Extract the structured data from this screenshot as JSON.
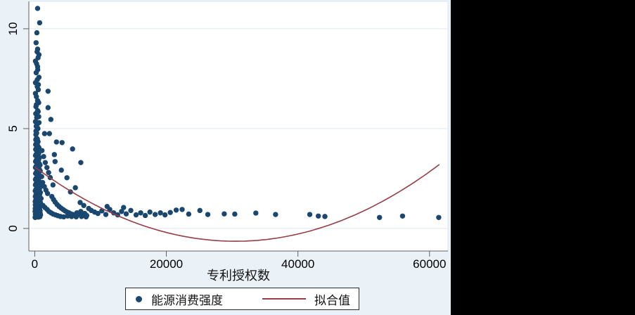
{
  "figure": {
    "background_color": "#eaf1f7",
    "outside_fill_color": "#000000",
    "plot_background": "#ffffff",
    "grid_color": "#dde9f0",
    "axis_color": "#606060",
    "tick_label_color": "#000000"
  },
  "chart_data": {
    "type": "scatter",
    "title": "",
    "xlabel": "专利授权数",
    "ylabel": "",
    "grid": "horizontal-only",
    "legend_position": "bottom-outside",
    "x_axis": {
      "ticks": [
        0,
        20000,
        40000,
        60000
      ],
      "tick_labels": [
        "0",
        "20000",
        "40000",
        "60000"
      ],
      "range": [
        -900,
        62800
      ]
    },
    "y_axis": {
      "ticks": [
        0,
        5,
        10
      ],
      "tick_labels": [
        "0",
        "5",
        "10"
      ],
      "range": [
        -1.13,
        11.37
      ]
    },
    "legend": [
      {
        "marker": "dot",
        "label": "能源消费强度",
        "color": "#1a476f"
      },
      {
        "marker": "line",
        "label": "拟合值",
        "color": "#973d44"
      }
    ],
    "series": [
      {
        "name": "能源消费强度",
        "type": "scatter",
        "color": "#1a476f",
        "marker_radius": 3.7,
        "points": [
          [
            60,
            0.55
          ],
          [
            120,
            0.62
          ],
          [
            200,
            0.58
          ],
          [
            310,
            0.66
          ],
          [
            420,
            0.6
          ],
          [
            540,
            0.57
          ],
          [
            660,
            0.63
          ],
          [
            780,
            0.59
          ],
          [
            880,
            0.68
          ],
          [
            95,
            0.72
          ],
          [
            175,
            0.78
          ],
          [
            260,
            0.74
          ],
          [
            350,
            0.8
          ],
          [
            470,
            0.76
          ],
          [
            590,
            0.82
          ],
          [
            700,
            0.71
          ],
          [
            820,
            0.77
          ],
          [
            55,
            0.85
          ],
          [
            140,
            0.9
          ],
          [
            230,
            0.88
          ],
          [
            330,
            0.95
          ],
          [
            450,
            0.92
          ],
          [
            570,
            0.86
          ],
          [
            690,
            0.93
          ],
          [
            810,
            0.89
          ],
          [
            70,
            1.0
          ],
          [
            160,
            1.05
          ],
          [
            250,
            0.98
          ],
          [
            360,
            1.1
          ],
          [
            480,
            1.02
          ],
          [
            600,
            1.08
          ],
          [
            720,
            1.0
          ],
          [
            840,
            1.12
          ],
          [
            85,
            1.18
          ],
          [
            190,
            1.22
          ],
          [
            280,
            1.15
          ],
          [
            390,
            1.25
          ],
          [
            510,
            1.2
          ],
          [
            630,
            1.28
          ],
          [
            750,
            1.16
          ],
          [
            860,
            1.3
          ],
          [
            65,
            1.35
          ],
          [
            150,
            1.42
          ],
          [
            240,
            1.38
          ],
          [
            340,
            1.48
          ],
          [
            460,
            1.4
          ],
          [
            580,
            1.5
          ],
          [
            700,
            1.44
          ],
          [
            800,
            1.55
          ],
          [
            90,
            1.6
          ],
          [
            180,
            1.68
          ],
          [
            270,
            1.62
          ],
          [
            380,
            1.72
          ],
          [
            500,
            1.65
          ],
          [
            620,
            1.75
          ],
          [
            740,
            1.7
          ],
          [
            855,
            1.8
          ],
          [
            75,
            1.88
          ],
          [
            165,
            1.95
          ],
          [
            255,
            1.9
          ],
          [
            365,
            2.0
          ],
          [
            485,
            1.92
          ],
          [
            605,
            2.05
          ],
          [
            725,
            1.98
          ],
          [
            845,
            2.1
          ],
          [
            100,
            2.18
          ],
          [
            210,
            2.25
          ],
          [
            320,
            2.2
          ],
          [
            430,
            2.3
          ],
          [
            550,
            2.24
          ],
          [
            670,
            2.35
          ],
          [
            790,
            2.28
          ],
          [
            110,
            2.45
          ],
          [
            225,
            2.52
          ],
          [
            345,
            2.48
          ],
          [
            465,
            2.6
          ],
          [
            585,
            2.55
          ],
          [
            705,
            2.65
          ],
          [
            825,
            2.58
          ],
          [
            130,
            2.75
          ],
          [
            245,
            2.82
          ],
          [
            355,
            2.78
          ],
          [
            475,
            2.9
          ],
          [
            595,
            2.85
          ],
          [
            715,
            2.95
          ],
          [
            835,
            2.88
          ],
          [
            105,
            3.05
          ],
          [
            220,
            3.12
          ],
          [
            335,
            3.08
          ],
          [
            445,
            3.2
          ],
          [
            565,
            3.15
          ],
          [
            685,
            3.25
          ],
          [
            805,
            3.18
          ],
          [
            125,
            3.35
          ],
          [
            235,
            3.42
          ],
          [
            352,
            3.38
          ],
          [
            472,
            3.5
          ],
          [
            592,
            3.45
          ],
          [
            712,
            3.55
          ],
          [
            115,
            3.65
          ],
          [
            228,
            3.72
          ],
          [
            348,
            3.68
          ],
          [
            468,
            3.8
          ],
          [
            588,
            3.75
          ],
          [
            145,
            3.95
          ],
          [
            265,
            4.02
          ],
          [
            385,
            3.98
          ],
          [
            505,
            4.1
          ],
          [
            625,
            4.05
          ],
          [
            135,
            4.2
          ],
          [
            258,
            4.28
          ],
          [
            378,
            4.22
          ],
          [
            498,
            4.35
          ],
          [
            155,
            4.45
          ],
          [
            275,
            4.52
          ],
          [
            395,
            4.48
          ],
          [
            170,
            4.7
          ],
          [
            290,
            4.78
          ],
          [
            185,
            4.88
          ],
          [
            430,
            11.02
          ],
          [
            745,
            10.3
          ],
          [
            320,
            9.8
          ],
          [
            200,
            9.3
          ],
          [
            430,
            8.98
          ],
          [
            350,
            8.85
          ],
          [
            640,
            8.7
          ],
          [
            500,
            8.55
          ],
          [
            105,
            8.38
          ],
          [
            280,
            8.25
          ],
          [
            430,
            8.1
          ],
          [
            450,
            7.95
          ],
          [
            215,
            7.8
          ],
          [
            640,
            7.57
          ],
          [
            380,
            7.45
          ],
          [
            105,
            7.3
          ],
          [
            550,
            7.2
          ],
          [
            380,
            7.1
          ],
          [
            540,
            6.95
          ],
          [
            2020,
            6.87
          ],
          [
            105,
            6.76
          ],
          [
            250,
            6.6
          ],
          [
            430,
            6.4
          ],
          [
            600,
            6.3
          ],
          [
            250,
            6.2
          ],
          [
            180,
            6.1
          ],
          [
            2020,
            6.05
          ],
          [
            430,
            5.9
          ],
          [
            520,
            5.85
          ],
          [
            150,
            5.75
          ],
          [
            600,
            5.6
          ],
          [
            300,
            5.55
          ],
          [
            2450,
            5.46
          ],
          [
            105,
            5.35
          ],
          [
            650,
            5.3
          ],
          [
            330,
            5.2
          ],
          [
            220,
            5.12
          ],
          [
            430,
            5.03
          ],
          [
            480,
            5.0
          ],
          [
            1490,
            4.75
          ],
          [
            2230,
            4.75
          ],
          [
            3300,
            4.33
          ],
          [
            4150,
            4.3
          ],
          [
            5745,
            3.98
          ],
          [
            1100,
            3.9
          ],
          [
            2980,
            3.7
          ],
          [
            1350,
            3.6
          ],
          [
            3085,
            3.35
          ],
          [
            7000,
            3.3
          ],
          [
            1600,
            3.3
          ],
          [
            1850,
            3.05
          ],
          [
            4040,
            2.92
          ],
          [
            2100,
            2.8
          ],
          [
            1050,
            2.6
          ],
          [
            2350,
            2.55
          ],
          [
            4890,
            2.54
          ],
          [
            1200,
            2.3
          ],
          [
            2770,
            2.18
          ],
          [
            1450,
            2.1
          ],
          [
            6170,
            2.04
          ],
          [
            1700,
            1.92
          ],
          [
            5425,
            1.83
          ],
          [
            1950,
            1.75
          ],
          [
            2600,
            1.6
          ],
          [
            960,
            1.5
          ],
          [
            2850,
            1.45
          ],
          [
            3100,
            1.32
          ],
          [
            6900,
            1.3
          ],
          [
            3400,
            1.2
          ],
          [
            7450,
            1.15
          ],
          [
            1250,
            1.15
          ],
          [
            3700,
            1.1
          ],
          [
            1550,
            1.05
          ],
          [
            4000,
            1.02
          ],
          [
            8200,
            1.0
          ],
          [
            1880,
            0.95
          ],
          [
            4300,
            0.95
          ],
          [
            8600,
            0.9
          ],
          [
            4600,
            0.88
          ],
          [
            2150,
            0.85
          ],
          [
            7000,
            0.85
          ],
          [
            4900,
            0.82
          ],
          [
            9100,
            0.82
          ],
          [
            2480,
            0.78
          ],
          [
            5200,
            0.78
          ],
          [
            6400,
            0.78
          ],
          [
            7600,
            0.75
          ],
          [
            9600,
            0.75
          ],
          [
            2800,
            0.72
          ],
          [
            6700,
            0.72
          ],
          [
            5500,
            0.73
          ],
          [
            5800,
            0.7
          ],
          [
            7300,
            0.68
          ],
          [
            6100,
            0.67
          ],
          [
            3150,
            0.68
          ],
          [
            3500,
            0.64
          ],
          [
            3900,
            0.6
          ],
          [
            4400,
            0.58
          ],
          [
            5000,
            0.62
          ],
          [
            5600,
            0.6
          ],
          [
            6300,
            0.58
          ],
          [
            7100,
            0.6
          ],
          [
            7800,
            0.58
          ],
          [
            7900,
            0.65
          ],
          [
            10200,
            0.88
          ],
          [
            10800,
            0.7
          ],
          [
            11000,
            1.1
          ],
          [
            11400,
            0.95
          ],
          [
            12000,
            0.78
          ],
          [
            12600,
            0.68
          ],
          [
            13200,
            0.85
          ],
          [
            13500,
            1.05
          ],
          [
            13900,
            0.73
          ],
          [
            14600,
            0.9
          ],
          [
            15400,
            0.68
          ],
          [
            16100,
            0.78
          ],
          [
            16800,
            0.65
          ],
          [
            17500,
            0.82
          ],
          [
            18300,
            0.7
          ],
          [
            19100,
            0.78
          ],
          [
            19800,
            0.68
          ],
          [
            20600,
            0.8
          ],
          [
            21500,
            0.92
          ],
          [
            22400,
            0.95
          ],
          [
            23400,
            0.72
          ],
          [
            25100,
            0.9
          ],
          [
            26300,
            0.7
          ],
          [
            28800,
            0.73
          ],
          [
            30400,
            0.72
          ],
          [
            33600,
            0.77
          ],
          [
            36600,
            0.7
          ],
          [
            41800,
            0.7
          ],
          [
            43100,
            0.62
          ],
          [
            44100,
            0.6
          ],
          [
            52400,
            0.55
          ],
          [
            55900,
            0.62
          ],
          [
            61400,
            0.55
          ]
        ]
      },
      {
        "name": "拟合值",
        "type": "quadratic-fit-line",
        "color": "#973d44",
        "coefficients": {
          "intercept": 3.08,
          "linear": -0.000244,
          "quadratic": 4e-09
        },
        "domain": [
          0,
          61500
        ]
      }
    ]
  }
}
